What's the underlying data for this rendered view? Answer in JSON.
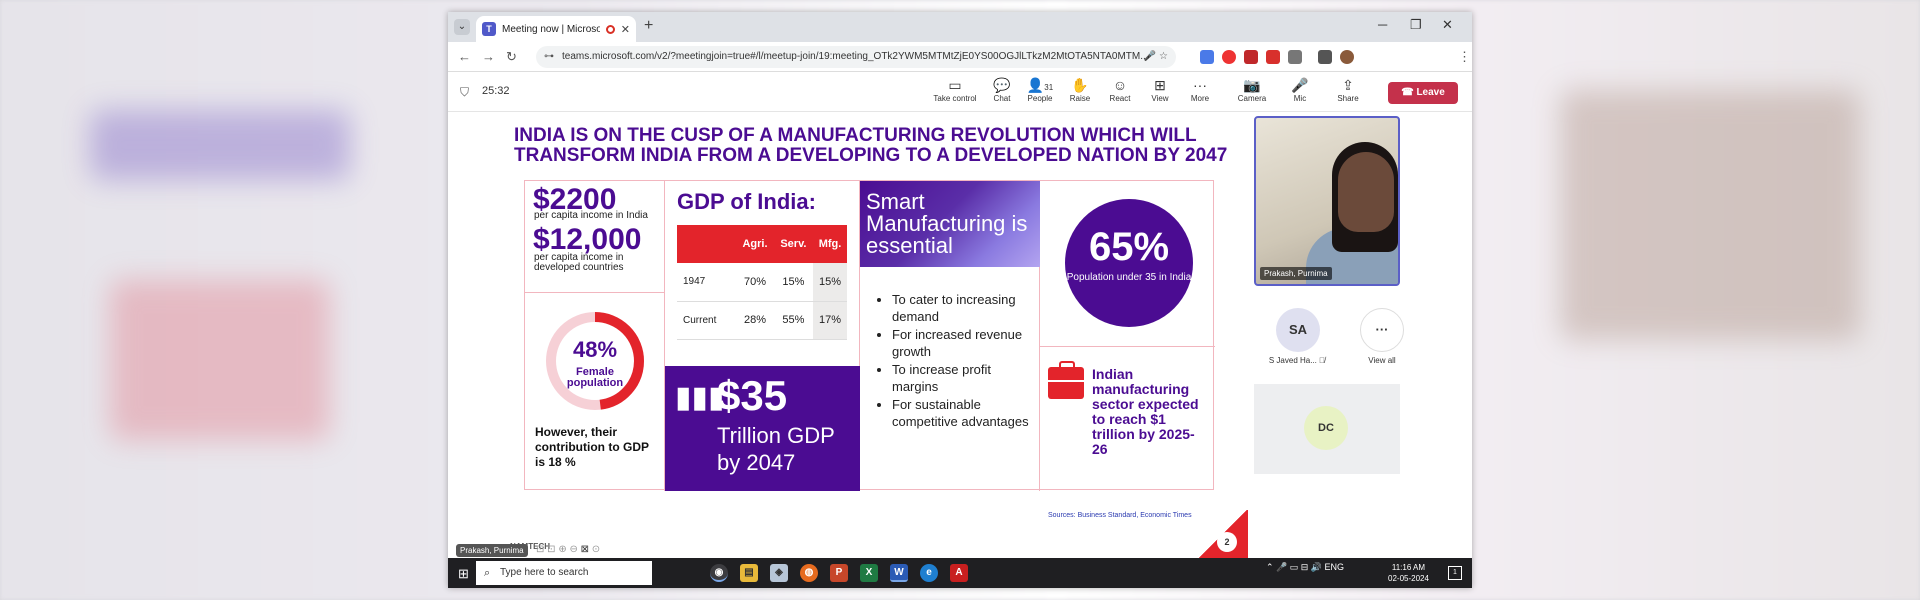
{
  "browser": {
    "tab_title": "Meeting now | Microsoft Te",
    "tab_icon": "T",
    "new_tab": "+",
    "url": "teams.microsoft.com/v2/?meetingjoin=true#/l/meetup-join/19:meeting_OTk2YWM5MTMtZjE0YS00OGJlLTkzM2MtOTA5NTA0MTM...",
    "window_controls": {
      "minimize": "─",
      "restore": "❐",
      "close": "✕"
    }
  },
  "teams": {
    "timer": "25:32",
    "toolbar": [
      {
        "label": "Take control",
        "icon": "▭"
      },
      {
        "label": "Chat",
        "icon": "💬"
      },
      {
        "label": "People",
        "icon": "👤",
        "count": "31"
      },
      {
        "label": "Raise",
        "icon": "✋"
      },
      {
        "label": "React",
        "icon": "☺"
      },
      {
        "label": "View",
        "icon": "⊞"
      },
      {
        "label": "More",
        "icon": "···"
      },
      {
        "label": "Camera",
        "icon": "📷"
      },
      {
        "label": "Mic",
        "icon": "🎤"
      },
      {
        "label": "Share",
        "icon": "⇪"
      }
    ],
    "leave_label": "Leave"
  },
  "slide": {
    "title": "India is on the cusp of a manufacturing revolution which will transform India from a developing to a developed nation by 2047",
    "income": {
      "v1": "$2200",
      "l1": "per capita income in India",
      "v2": "$12,000",
      "l2": "per capita income in developed countries"
    },
    "female": {
      "pct": "48%",
      "label": "Female population",
      "fraction": 0.48,
      "caption": "However, their contribution to GDP is 18 %"
    },
    "gdp": {
      "heading": "GDP of India:",
      "headers": [
        "",
        "Agri.",
        "Serv.",
        "Mfg."
      ],
      "rows": [
        [
          "1947",
          "70%",
          "15%",
          "15%"
        ],
        [
          "Current",
          "28%",
          "55%",
          "17%"
        ]
      ]
    },
    "trillion": {
      "value": "$35",
      "text": "Trillion GDP by 2047"
    },
    "smart": {
      "title": "Smart Manufacturing is essential",
      "bullets": [
        "To cater to increasing demand",
        "For increased revenue growth",
        "To increase profit margins",
        "For sustainable competitive advantages"
      ]
    },
    "population": {
      "pct": "65%",
      "label": "Population under 35 in India"
    },
    "sector": "Indian manufacturing sector expected to reach $1 trillion by 2025-26",
    "sources": "Sources: Business Standard, Economic Times",
    "page": "2",
    "logo": "NAMTECH",
    "presenter_tag": "Prakash, Purnima"
  },
  "participants": {
    "main_video_name": "Prakash, Purnima",
    "sa_initials": "SA",
    "sa_name": "S Javed Ha...",
    "view_all": "View all",
    "view_all_icon": "···",
    "dc_initials": "DC"
  },
  "taskbar": {
    "search_placeholder": "Type here to search",
    "lang": "ENG",
    "time": "11:16 AM",
    "date": "02-05-2024"
  }
}
